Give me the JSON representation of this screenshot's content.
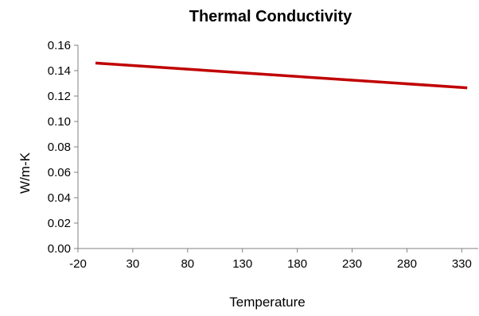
{
  "chart_data": {
    "type": "line",
    "title": "Thermal Conductivity",
    "xlabel": "Temperature",
    "ylabel": "W/m-K",
    "xlim": [
      -20,
      345
    ],
    "ylim": [
      0,
      0.16
    ],
    "x_ticks": [
      -20,
      30,
      80,
      130,
      180,
      230,
      280,
      330
    ],
    "x_tick_labels": [
      "-20",
      "30",
      "80",
      "130",
      "180",
      "230",
      "280",
      "330"
    ],
    "y_ticks": [
      0,
      0.02,
      0.04,
      0.06,
      0.08,
      0.1,
      0.12,
      0.14,
      0.16
    ],
    "y_tick_labels": [
      "0.00",
      "0.02",
      "0.04",
      "0.06",
      "0.08",
      "0.10",
      "0.12",
      "0.14",
      "0.16"
    ],
    "grid": false,
    "legend": "none",
    "colors": {
      "series": "#c00000",
      "axis": "#808080"
    },
    "series": [
      {
        "x": [
          -4,
          335
        ],
        "y": [
          0.146,
          0.1265
        ]
      }
    ]
  }
}
